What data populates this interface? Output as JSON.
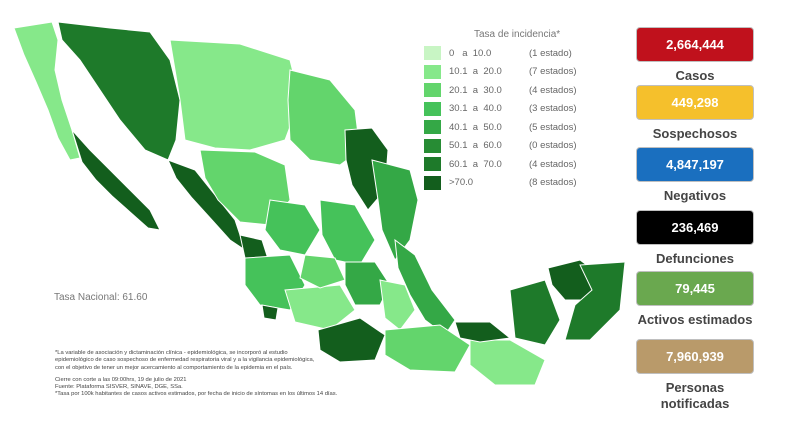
{
  "legend": {
    "title": "Tasa de incidencia*",
    "items": [
      {
        "range": "0   a  10.0",
        "count": "(1 estado)",
        "color": "#c8f5c4"
      },
      {
        "range": "10.1  a  20.0",
        "count": "(7 estados)",
        "color": "#86e88a"
      },
      {
        "range": "20.1  a  30.0",
        "count": "(4 estados)",
        "color": "#63d56c"
      },
      {
        "range": "30.1  a  40.0",
        "count": "(3 estados)",
        "color": "#45c25a"
      },
      {
        "range": "40.1  a  50.0",
        "count": "(5 estados)",
        "color": "#34a846"
      },
      {
        "range": "50.1  a  60.0",
        "count": "(0 estados)",
        "color": "#278c34"
      },
      {
        "range": "60.1  a  70.0",
        "count": "(4 estados)",
        "color": "#1e7a2a"
      },
      {
        "range": ">70.0",
        "count": "(8 estados)",
        "color": "#135e1d"
      }
    ]
  },
  "national_rate": "Tasa Nacional: 61.60",
  "notes": {
    "line1": "*La variable de asociación y dictaminación clínica - epidemiológica, se incorporó al estudio",
    "line2": "epidemiológico de caso sospechoso de enfermedad respiratoria viral y a la vigilancia epidemiológica,",
    "line3": "con el objetivo de tener un mejor acercamiento al comportamiento de la epidemia en el país.",
    "line4": "Cierre con corte a las 09:00hrs, 19 de julio de 2021",
    "line5": "Fuente: Plataforma SISVER, SINAVE, DGE, SSa.",
    "line6": "*Tasa por 100k habitantes de casos activos estimados, por fecha de inicio de síntomas en los últimos 14 días."
  },
  "stats": [
    {
      "value": "2,664,444",
      "label": "Casos",
      "color": "#c0111c",
      "text_color": "#ffffff"
    },
    {
      "value": "449,298",
      "label": "Sospechosos",
      "color": "#f5c02c",
      "text_color": "#ffffff"
    },
    {
      "value": "4,847,197",
      "label": "Negativos",
      "color": "#1a6fbf",
      "text_color": "#ffffff"
    },
    {
      "value": "236,469",
      "label": "Defunciones",
      "color": "#000000",
      "text_color": "#ffffff"
    },
    {
      "value": "79,445",
      "label": "Activos estimados",
      "color": "#6aa84f",
      "text_color": "#ffffff"
    },
    {
      "value": "7,960,939",
      "label": "Personas notificadas",
      "color": "#b99a6a",
      "text_color": "#ffffff"
    }
  ],
  "chart_data": {
    "type": "choropleth",
    "title": "Tasa de incidencia*",
    "bins": [
      {
        "range": "0 a 10.0",
        "states": 1
      },
      {
        "range": "10.1 a 20.0",
        "states": 7
      },
      {
        "range": "20.1 a 30.0",
        "states": 4
      },
      {
        "range": "30.1 a 40.0",
        "states": 3
      },
      {
        "range": "40.1 a 50.0",
        "states": 5
      },
      {
        "range": "50.1 a 60.0",
        "states": 0
      },
      {
        "range": "60.1 a 70.0",
        "states": 4
      },
      {
        "range": ">70.0",
        "states": 8
      }
    ],
    "national_rate": 61.6,
    "legend_position": "top-right"
  }
}
